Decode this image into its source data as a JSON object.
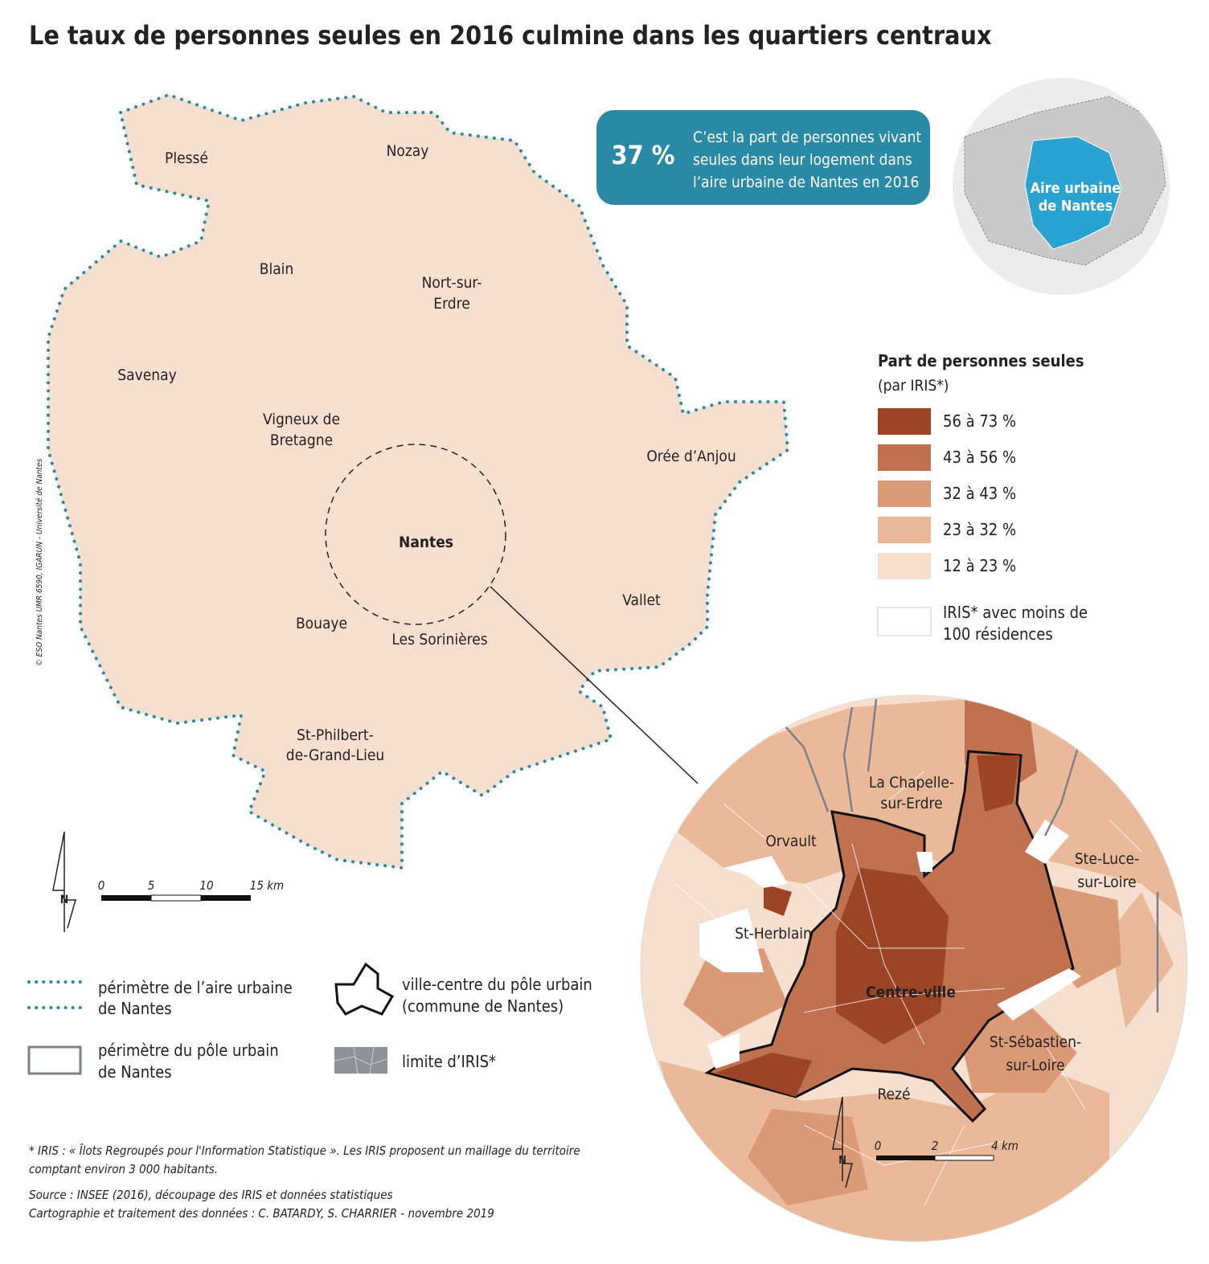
{
  "title": "Le taux de personnes seules en 2016 culmine dans les quartiers centraux",
  "callout": {
    "value": "37 %",
    "lines": [
      "C’est la part de personnes vivant",
      "seules dans leur logement dans",
      "l’aire urbaine de Nantes en 2016"
    ]
  },
  "locator": {
    "lines": [
      "Aire urbaine",
      "de Nantes"
    ]
  },
  "legend": {
    "title": "Part de personnes seules",
    "subtitle": "(par IRIS*)",
    "classes": [
      {
        "label": "56 à 73 %",
        "color": "#9b4526"
      },
      {
        "label": "43 à 56 %",
        "color": "#bf7150"
      },
      {
        "label": "32 à 43 %",
        "color": "#da9a78"
      },
      {
        "label": "23 à 32 %",
        "color": "#e9b99a"
      },
      {
        "label": "12 à 23 %",
        "color": "#f6dfcf"
      }
    ],
    "no_data": [
      "IRIS* avec moins de",
      "100 résidences"
    ]
  },
  "main_map": {
    "places": [
      "Plessé",
      "Nozay",
      "Blain",
      "Nort-sur-",
      "Erdre",
      "Savenay",
      "Vigneux de",
      "Bretagne",
      "Orée d’Anjou",
      "Nantes",
      "Vallet",
      "Bouaye",
      "Les Sorinières",
      "St-Philbert-",
      "de-Grand-Lieu"
    ],
    "scale": [
      "0",
      "5",
      "10",
      "15 km"
    ],
    "north": "N"
  },
  "zoom_map": {
    "places": [
      "La Chapelle-",
      "sur-Erdre",
      "Orvault",
      "Ste-Luce-",
      "sur-Loire",
      "St-Herblain",
      "Centre-ville",
      "St-Sébastien-",
      "sur-Loire",
      "Rezé"
    ],
    "scale": [
      "0",
      "2",
      "4 km"
    ],
    "north": "N"
  },
  "map_legend": {
    "aire": [
      "périmètre de l’aire urbaine",
      "de Nantes"
    ],
    "pole": [
      "périmètre du pôle urbain",
      "de Nantes"
    ],
    "ville": [
      "ville-centre du pôle urbain",
      "(commune de Nantes)"
    ],
    "iris": "limite d’IRIS*"
  },
  "copyright": "© ESO Nantes UMR 6590, IGARUN - Université de Nantes",
  "footnote": [
    "* IRIS : « Îlots Regroupés pour l'Information Statistique ». Les IRIS proposent un maillage du territoire",
    "comptant environ 3 000 habitants."
  ],
  "source": [
    "Source : INSEE (2016), découpage des IRIS et données statistiques",
    "Cartographie et traitement des données  : C. BATARDY, S. CHARRIER - novembre 2019"
  ]
}
